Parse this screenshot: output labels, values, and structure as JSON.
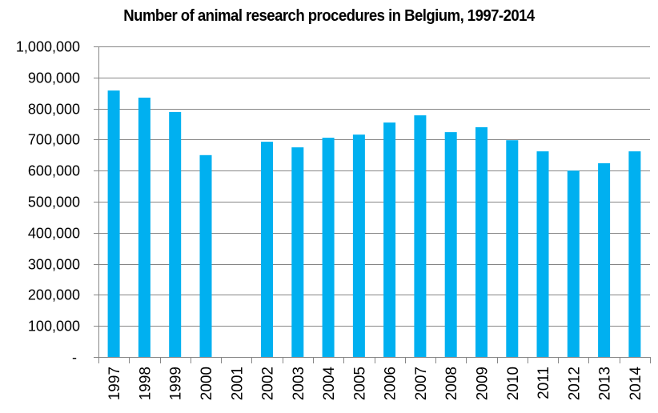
{
  "chart_data": {
    "type": "bar",
    "title": "Number of animal research procedures in Belgium, 1997-2014",
    "xlabel": "",
    "ylabel": "",
    "categories": [
      "1997",
      "1998",
      "1999",
      "2000",
      "2001",
      "2002",
      "2003",
      "2004",
      "2005",
      "2006",
      "2007",
      "2008",
      "2009",
      "2010",
      "2011",
      "2012",
      "2013",
      "2014"
    ],
    "values": [
      858000,
      835000,
      789000,
      650000,
      null,
      693000,
      675000,
      706000,
      716000,
      755000,
      778000,
      724000,
      740000,
      698000,
      662000,
      600000,
      624000,
      662000
    ],
    "ylim": [
      0,
      1000000
    ],
    "yticks": [
      0,
      100000,
      200000,
      300000,
      400000,
      500000,
      600000,
      700000,
      800000,
      900000,
      1000000
    ],
    "ytick_labels": [
      "-",
      "100,000",
      "200,000",
      "300,000",
      "400,000",
      "500,000",
      "600,000",
      "700,000",
      "800,000",
      "900,000",
      "1,000,000"
    ],
    "grid": true,
    "legend": "none",
    "bar_color": "#00B0F0",
    "grid_color": "#868686",
    "xtick_rotation": "vertical"
  }
}
